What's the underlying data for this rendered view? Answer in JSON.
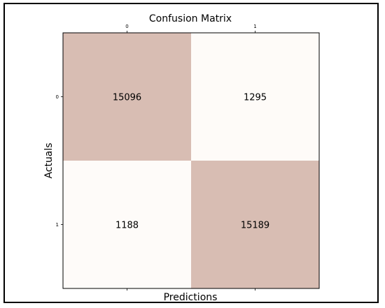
{
  "chart_data": {
    "type": "heatmap",
    "title": "Confusion Matrix",
    "xlabel": "Predictions",
    "ylabel": "Actuals",
    "x_ticks": [
      "0",
      "1"
    ],
    "y_ticks": [
      "0",
      "1"
    ],
    "matrix": [
      [
        15096,
        1295
      ],
      [
        1188,
        15189
      ]
    ],
    "colors": {
      "high": "#d8bdb3",
      "low": "#fefbf9",
      "border": "#000000"
    },
    "grid": false,
    "legend": "none"
  }
}
